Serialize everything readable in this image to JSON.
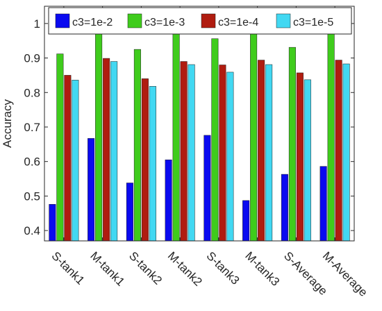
{
  "chart_data": {
    "type": "bar",
    "title": "",
    "xlabel": "",
    "ylabel": "Accuracy",
    "ylim": [
      0.37,
      1.05
    ],
    "yticks": [
      0.4,
      0.5,
      0.6,
      0.7,
      0.8,
      0.9,
      1
    ],
    "ytick_labels": [
      "0.4",
      "0.5",
      "0.6",
      "0.7",
      "0.8",
      "0.9",
      "1"
    ],
    "categories": [
      "S-tank1",
      "M-tank1",
      "S-tank2",
      "M-tank2",
      "S-tank3",
      "M-tank3",
      "S-Average",
      "M-Average"
    ],
    "legend_position": "top",
    "grid": false,
    "series": [
      {
        "name": "c3=1e-2",
        "color": "#0a0af0",
        "values": [
          0.476,
          0.667,
          0.538,
          0.605,
          0.676,
          0.487,
          0.563,
          0.586
        ]
      },
      {
        "name": "c3=1e-3",
        "color": "#3fcc1c",
        "values": [
          0.912,
          0.996,
          0.925,
          1.0,
          0.956,
          0.979,
          0.931,
          0.991
        ]
      },
      {
        "name": "c3=1e-4",
        "color": "#b01c10",
        "values": [
          0.85,
          0.899,
          0.84,
          0.89,
          0.88,
          0.894,
          0.857,
          0.894
        ]
      },
      {
        "name": "c3=1e-5",
        "color": "#42d8f2",
        "values": [
          0.836,
          0.89,
          0.818,
          0.881,
          0.859,
          0.881,
          0.837,
          0.883
        ]
      }
    ]
  }
}
